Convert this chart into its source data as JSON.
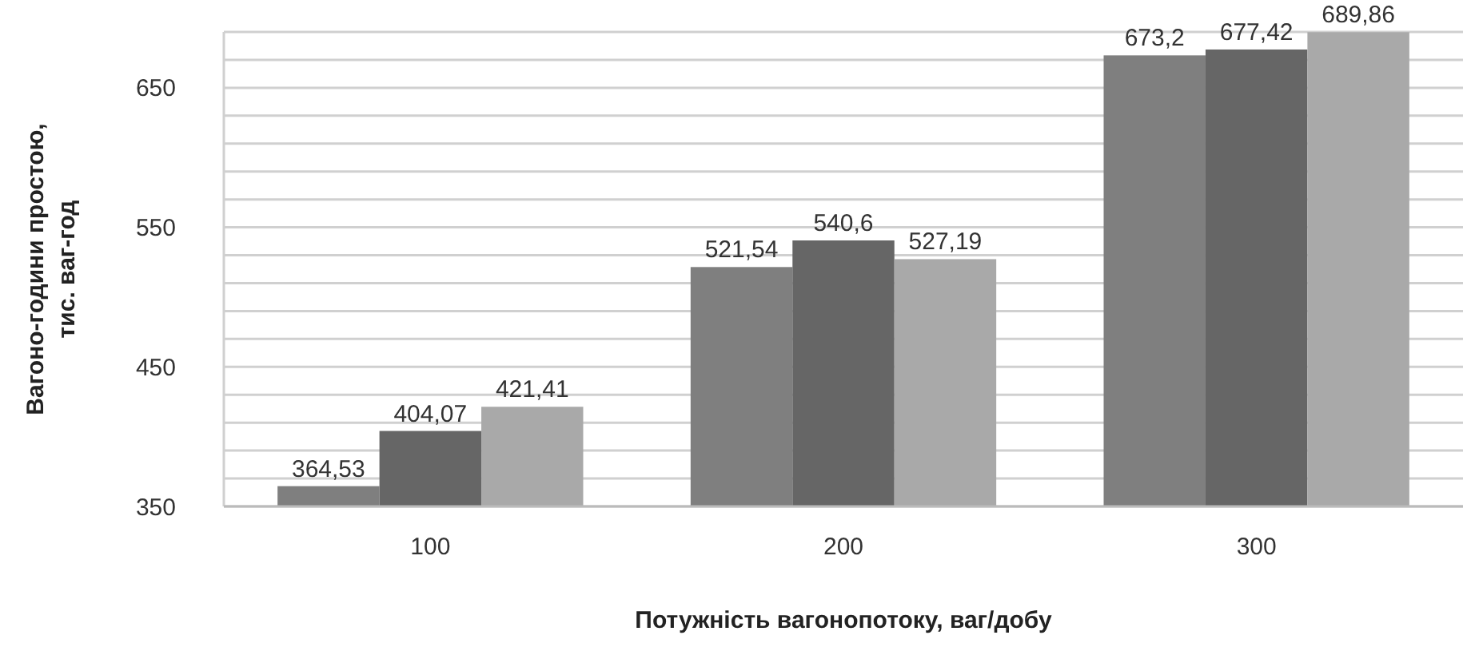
{
  "chart_data": {
    "type": "bar",
    "xlabel": "Потужність вагонопотоку, ваг/добу",
    "ylabel": "Вагоно-години простою, тис. ваг-год",
    "categories": [
      "100",
      "200",
      "300"
    ],
    "series": [
      {
        "color": "#7f7f7f",
        "values": [
          364.53,
          521.54,
          673.2
        ],
        "value_labels": [
          "364,53",
          "521,54",
          "673,2"
        ]
      },
      {
        "color": "#666666",
        "values": [
          404.07,
          540.6,
          677.42
        ],
        "value_labels": [
          "404,07",
          "540,6",
          "677,42"
        ]
      },
      {
        "color": "#a9a9a9",
        "values": [
          421.41,
          527.19,
          689.86
        ],
        "value_labels": [
          "421,41",
          "527,19",
          "689,86"
        ]
      }
    ],
    "ylim": [
      350,
      690
    ],
    "yticks": [
      350,
      {
        "value": 370,
        "label": null
      },
      {
        "value": 390,
        "label": null
      },
      {
        "value": 410,
        "label": null
      },
      {
        "value": 430,
        "label": null
      },
      450,
      {
        "value": 470,
        "label": null
      },
      {
        "value": 490,
        "label": null
      },
      {
        "value": 510,
        "label": null
      },
      {
        "value": 530,
        "label": null
      },
      550,
      {
        "value": 570,
        "label": null
      },
      {
        "value": 590,
        "label": null
      },
      {
        "value": 610,
        "label": null
      },
      {
        "value": 630,
        "label": null
      },
      650,
      {
        "value": 670,
        "label": null
      },
      {
        "value": 690,
        "label": null
      }
    ],
    "grid": "y"
  }
}
